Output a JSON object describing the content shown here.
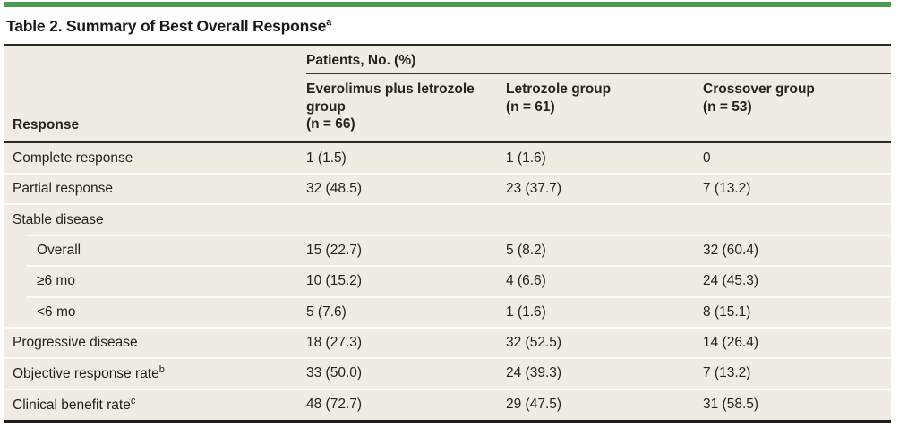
{
  "colors": {
    "accent_green": "#4a9b4f",
    "table_background": "#f0ece1",
    "rule_dark": "#2c2a26",
    "separator_white": "#fdfcfa",
    "text": "#26231d"
  },
  "title": {
    "text": "Table 2. Summary of Best Overall Response",
    "superscript": "a"
  },
  "table": {
    "spanner_header": "Patients, No. (%)",
    "row_header": "Response",
    "columns": [
      {
        "label": "Everolimus plus letrozole group",
        "n": "(n = 66)"
      },
      {
        "label": "Letrozole group",
        "n": "(n = 61)"
      },
      {
        "label": "Crossover group",
        "n": "(n = 53)"
      }
    ],
    "rows": [
      {
        "label": "Complete response",
        "values": [
          "1 (1.5)",
          "1 (1.6)",
          "0"
        ]
      },
      {
        "label": "Partial response",
        "values": [
          "32 (48.5)",
          "23 (37.7)",
          "7 (13.2)"
        ]
      },
      {
        "label": "Stable disease",
        "values": [
          "",
          "",
          ""
        ]
      },
      {
        "label": "Overall",
        "values": [
          "15 (22.7)",
          "5 (8.2)",
          "32 (60.4)"
        ]
      },
      {
        "label": "≥6 mo",
        "values": [
          "10 (15.2)",
          "4 (6.6)",
          "24 (45.3)"
        ]
      },
      {
        "label": "<6 mo",
        "values": [
          "5 (7.6)",
          "1 (1.6)",
          "8 (15.1)"
        ]
      },
      {
        "label": "Progressive disease",
        "values": [
          "18 (27.3)",
          "32 (52.5)",
          "14 (26.4)"
        ]
      },
      {
        "label": "Objective response rate",
        "sup": "b",
        "values": [
          "33 (50.0)",
          "24 (39.3)",
          "7 (13.2)"
        ]
      },
      {
        "label": "Clinical benefit rate",
        "sup": "c",
        "values": [
          "48 (72.7)",
          "29 (47.5)",
          "31 (58.5)"
        ]
      }
    ]
  }
}
